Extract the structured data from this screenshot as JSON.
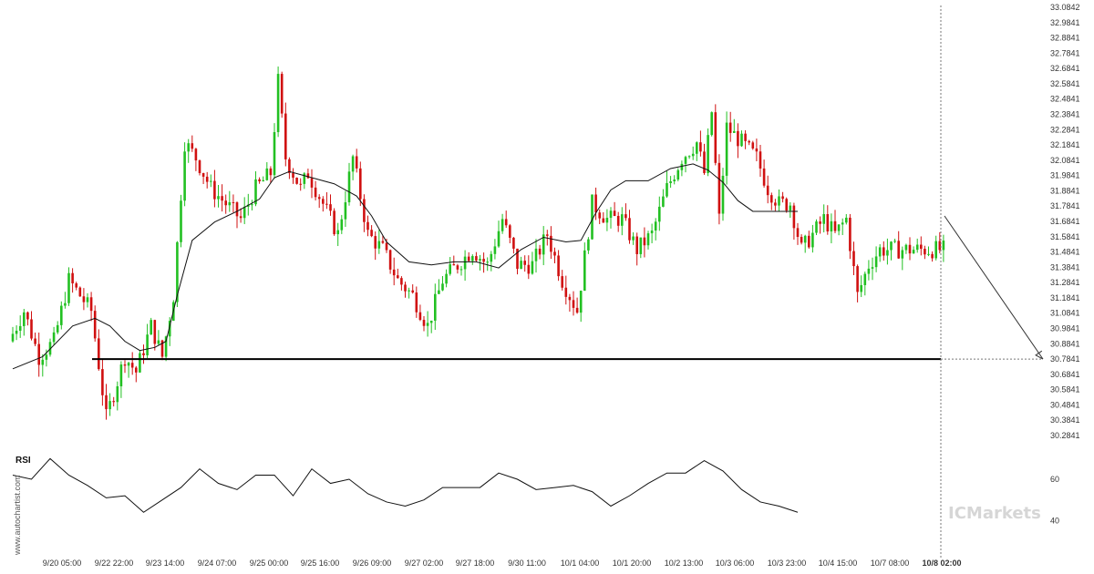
{
  "chart_data": [
    {
      "type": "candlestick",
      "colors": {
        "up": "#22c022",
        "down": "#d01010",
        "ma": "#111111",
        "level": "#000000",
        "projection": "#333333"
      },
      "y_ticks": [
        "33.0842",
        "32.9841",
        "32.8841",
        "32.7841",
        "32.6841",
        "32.5841",
        "32.4841",
        "32.3841",
        "32.2841",
        "32.1841",
        "32.0841",
        "31.9841",
        "31.8841",
        "31.7841",
        "31.6841",
        "31.5841",
        "31.4841",
        "31.3841",
        "31.2841",
        "31.1841",
        "31.0841",
        "30.9841",
        "30.8841",
        "30.7841",
        "30.6841",
        "30.5841",
        "30.4841",
        "30.3841",
        "30.2841"
      ],
      "ylim": [
        30.2841,
        33.0842
      ],
      "x_labels": [
        "9/20 05:00",
        "9/22 22:00",
        "9/23 14:00",
        "9/24 07:00",
        "9/25 00:00",
        "9/25 16:00",
        "9/26 09:00",
        "9/27 02:00",
        "9/27 18:00",
        "9/30 11:00",
        "10/1 04:00",
        "10/1 20:00",
        "10/2 13:00",
        "10/3 06:00",
        "10/3 23:00",
        "10/4 15:00",
        "10/7 08:00",
        "10/8 02:00"
      ],
      "series": [
        {
          "kind": "price-path",
          "x": [
            0,
            4,
            8,
            12,
            16,
            19,
            22,
            26,
            31,
            34,
            38,
            41,
            44,
            47,
            50,
            54,
            58,
            62,
            66,
            70,
            72,
            74,
            76,
            78,
            80,
            84,
            88,
            92,
            96,
            100,
            104,
            108,
            112,
            116,
            120,
            124,
            128,
            132,
            136,
            140,
            144,
            148,
            152,
            156,
            160,
            164,
            168,
            172,
            176,
            180,
            184,
            186,
            188,
            190,
            192,
            196,
            200,
            203,
            206,
            209,
            212,
            215,
            218,
            221,
            224,
            227,
            230,
            233,
            236,
            239,
            242,
            245,
            248,
            250,
            252,
            254,
            256,
            258,
            260,
            263,
            266,
            269,
            272
          ],
          "values": [
            30.9,
            31.1,
            30.8,
            30.9,
            31.3,
            31.2,
            31.1,
            30.4,
            30.8,
            30.7,
            31.0,
            30.8,
            31.2,
            32.2,
            32.1,
            31.9,
            31.8,
            31.7,
            31.9,
            32.0,
            32.6,
            32.1,
            32.0,
            31.9,
            32.0,
            31.8,
            31.6,
            32.1,
            31.6,
            31.5,
            31.3,
            31.2,
            31.0,
            31.3,
            31.4,
            31.5,
            31.4,
            31.7,
            31.4,
            31.4,
            31.6,
            31.3,
            31.1,
            31.8,
            31.7,
            31.7,
            31.5,
            31.6,
            31.9,
            32.1,
            32.2,
            32.0,
            32.4,
            31.7,
            32.3,
            32.2,
            32.1,
            31.9,
            31.8,
            31.8,
            31.5,
            31.6,
            31.7,
            31.6,
            31.7,
            31.2,
            31.4,
            31.5,
            31.5,
            31.5,
            31.5,
            31.5,
            31.5,
            31.5,
            31.5,
            31.5,
            31.5,
            31.5,
            31.5,
            31.5,
            31.5,
            31.5,
            31.5
          ]
        },
        {
          "kind": "moving-average",
          "x": [
            0,
            8,
            16,
            22,
            26,
            30,
            34,
            38,
            41,
            44,
            48,
            54,
            60,
            66,
            70,
            74,
            80,
            86,
            92,
            96,
            100,
            106,
            112,
            118,
            124,
            130,
            136,
            142,
            148,
            152,
            156,
            160,
            164,
            170,
            176,
            182,
            186,
            190,
            194,
            198,
            204,
            210
          ],
          "values": [
            30.72,
            30.8,
            31.0,
            31.05,
            31.0,
            30.9,
            30.84,
            30.86,
            30.9,
            31.2,
            31.56,
            31.68,
            31.75,
            31.83,
            31.97,
            32.01,
            31.97,
            31.93,
            31.85,
            31.72,
            31.55,
            31.42,
            31.4,
            31.42,
            31.42,
            31.38,
            31.5,
            31.58,
            31.55,
            31.56,
            31.74,
            31.89,
            31.95,
            31.95,
            32.03,
            32.06,
            32.02,
            31.94,
            31.82,
            31.75,
            31.75,
            31.75
          ]
        }
      ],
      "support_level": 30.7841,
      "projection_end_value": 30.7841
    },
    {
      "type": "line",
      "title": "RSI",
      "y_ticks": [
        "60",
        "40"
      ],
      "ylim": [
        30,
        75
      ],
      "series": [
        {
          "x": [
            0,
            5,
            10,
            15,
            20,
            25,
            30,
            35,
            40,
            45,
            50,
            55,
            60,
            65,
            70,
            75,
            80,
            85,
            90,
            95,
            100,
            105,
            110,
            115,
            120,
            125,
            130,
            135,
            140,
            145,
            150,
            155,
            160,
            165,
            170,
            175,
            180,
            185,
            190,
            195,
            200,
            205,
            210
          ],
          "values": [
            62,
            60,
            70,
            62,
            57,
            51,
            52,
            44,
            50,
            56,
            65,
            58,
            55,
            62,
            62,
            52,
            65,
            58,
            60,
            53,
            49,
            47,
            50,
            56,
            56,
            56,
            63,
            60,
            55,
            56,
            57,
            54,
            47,
            52,
            58,
            63,
            63,
            69,
            64,
            55,
            49,
            47,
            44
          ]
        }
      ]
    }
  ],
  "watermarks": {
    "broker": "ICMarkets",
    "vertical": "www.autochartist.com"
  }
}
